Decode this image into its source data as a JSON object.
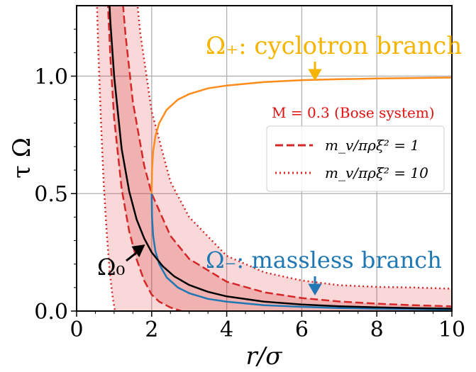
{
  "chart_data": {
    "type": "line",
    "xlabel": "r/σ",
    "ylabel": "τ Ω",
    "xlim": [
      0,
      10
    ],
    "ylim": [
      0,
      1.3
    ],
    "x_ticks": [
      "0",
      "2",
      "4",
      "6",
      "8",
      "10"
    ],
    "y_ticks": [
      "0.0",
      "0.5",
      "1.0"
    ],
    "grid": true,
    "legend_position": "center-right",
    "legend_title": "M = 0.3 (Bose system)",
    "legend_entries": [
      {
        "label": "m_v/πρξ² = 1",
        "style": "dashed",
        "color": "#d62728"
      },
      {
        "label": "m_v/πρξ² = 10",
        "style": "dotted",
        "color": "#d62728"
      }
    ],
    "annotations": {
      "cyclotron": "Ω₊: cyclotron branch",
      "massless": "Ω₋: massless branch",
      "omega0": "Ω₀"
    },
    "colors": {
      "cyclotron": "#ff8c1a",
      "cyclotron_text": "#f5b400",
      "massless": "#1f77b4",
      "omega0": "#000000",
      "band": "#d62728"
    },
    "series": [
      {
        "name": "Ω₀",
        "x": [
          0.84,
          0.9,
          1.0,
          1.2,
          1.4,
          1.6,
          1.8,
          2.0,
          2.3,
          2.6,
          3.0,
          3.5,
          4.0,
          5.0,
          6.0,
          7.0,
          8.0,
          9.0,
          10.0
        ],
        "y": [
          1.42,
          1.23,
          1.0,
          0.69,
          0.51,
          0.39,
          0.31,
          0.25,
          0.19,
          0.148,
          0.111,
          0.082,
          0.0625,
          0.04,
          0.028,
          0.0204,
          0.0156,
          0.0123,
          0.01
        ]
      },
      {
        "name": "Ω₊",
        "x": [
          2.0,
          2.01,
          2.04,
          2.1,
          2.2,
          2.4,
          2.7,
          3.0,
          3.5,
          4.0,
          5.0,
          6.0,
          7.0,
          8.0,
          9.0,
          10.0
        ],
        "y": [
          0.5,
          0.6,
          0.68,
          0.745,
          0.8,
          0.857,
          0.9,
          0.924,
          0.948,
          0.96,
          0.975,
          0.983,
          0.987,
          0.99,
          0.992,
          0.994
        ]
      },
      {
        "name": "Ω₋",
        "x": [
          2.0,
          2.01,
          2.04,
          2.1,
          2.2,
          2.4,
          2.7,
          3.0,
          3.5,
          4.0,
          5.0,
          6.0,
          7.0,
          8.0,
          9.0,
          10.0
        ],
        "y": [
          0.5,
          0.4,
          0.32,
          0.255,
          0.2,
          0.143,
          0.1,
          0.076,
          0.052,
          0.04,
          0.025,
          0.018,
          0.013,
          0.01,
          0.008,
          0.006
        ]
      },
      {
        "name": "m_v/πρξ² = 1 (upper)",
        "x": [
          1.16,
          1.3,
          1.5,
          1.8,
          2.0,
          2.5,
          3.0,
          4.0,
          5.0,
          6.0,
          7.0,
          8.0,
          9.0,
          10.0
        ],
        "y": [
          1.45,
          1.18,
          0.89,
          0.62,
          0.5,
          0.32,
          0.222,
          0.125,
          0.08,
          0.0556,
          0.0408,
          0.0313,
          0.0247,
          0.02
        ]
      },
      {
        "name": "m_v/πρξ² = 1 (lower)",
        "x": [
          0.8,
          0.9,
          1.0,
          1.2,
          1.4,
          1.6,
          1.8,
          2.0,
          2.2,
          2.5,
          2.8
        ],
        "y": [
          1.42,
          1.08,
          0.82,
          0.52,
          0.34,
          0.22,
          0.13,
          0.07,
          0.04,
          0.015,
          0.0
        ]
      },
      {
        "name": "m_v/πρξ² = 10 (upper)",
        "x": [
          1.55,
          1.7,
          2.0,
          2.5,
          3.0,
          4.0,
          5.0,
          6.0,
          7.0,
          8.0,
          9.0,
          10.0
        ],
        "y": [
          1.42,
          1.18,
          0.85,
          0.55,
          0.4,
          0.235,
          0.165,
          0.13,
          0.11,
          0.103,
          0.1,
          0.095
        ]
      },
      {
        "name": "m_v/πρξ² = 10 (lower)",
        "x": [
          0.52,
          0.58,
          0.65,
          0.72,
          0.8,
          0.88,
          0.95,
          1.02
        ],
        "y": [
          1.42,
          1.1,
          0.8,
          0.55,
          0.34,
          0.17,
          0.07,
          0.0
        ]
      }
    ]
  }
}
